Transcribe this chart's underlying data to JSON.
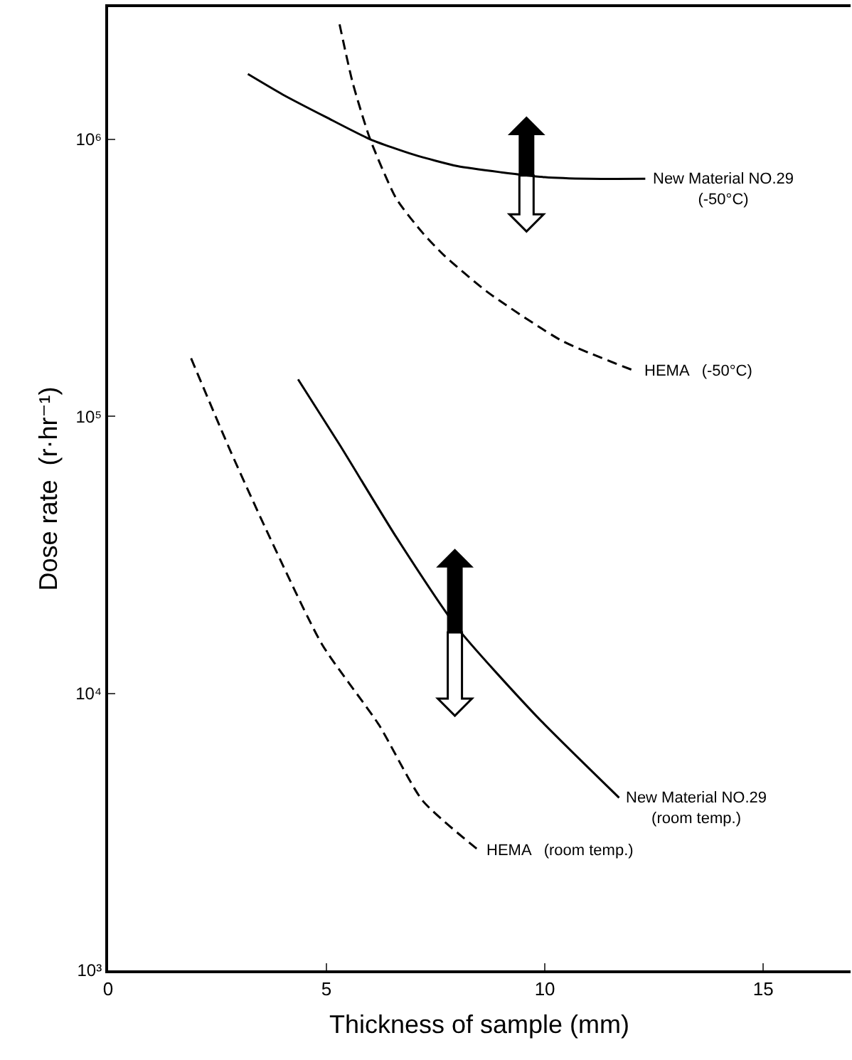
{
  "chart_data": {
    "type": "line",
    "xlabel": "Thickness of sample (mm)",
    "ylabel": "Dose rate  (r·hr⁻¹)",
    "log": "y",
    "grid": false,
    "marker": "none",
    "xlim": [
      0,
      17
    ],
    "xticks": [
      0,
      5,
      10,
      15
    ],
    "ylim": [
      1000,
      3000000
    ],
    "yticks": [
      {
        "value": 1000,
        "label": "10³"
      },
      {
        "value": 10000,
        "label": "10⁴"
      },
      {
        "value": 100000,
        "label": "10⁵"
      },
      {
        "value": 1000000,
        "label": "10⁶"
      }
    ],
    "series": [
      {
        "color": "#000000",
        "line_style": "solid",
        "x": [
          3.2,
          4,
          5,
          6,
          7,
          8,
          9,
          10,
          11,
          12.3
        ],
        "values": [
          1720000,
          1450000,
          1200000,
          1000000,
          880000,
          800000,
          760000,
          730000,
          720000,
          720000
        ]
      },
      {
        "color": "#000000",
        "line_style": "dashed",
        "x": [
          5.3,
          5.6,
          6,
          6.6,
          7.2,
          7.7,
          8.7,
          10.4,
          12.1
        ],
        "values": [
          2600000,
          1600000,
          1000000,
          610000,
          460000,
          380000,
          280000,
          187000,
          145000
        ]
      },
      {
        "color": "#000000",
        "line_style": "solid",
        "x": [
          4.35,
          5.3,
          6.6,
          8,
          9.8,
          11.7
        ],
        "values": [
          136000,
          79000,
          36600,
          17200,
          8300,
          4200
        ]
      },
      {
        "color": "#000000",
        "line_style": "dashed",
        "x": [
          1.9,
          2.8,
          3.7,
          4.9,
          6.2,
          7.2,
          8.5
        ],
        "values": [
          162000,
          75000,
          36600,
          15000,
          7700,
          4100,
          2700
        ]
      }
    ],
    "annotations": [
      {
        "text": "New Material NO.29\n(-50°C)",
        "x": 12.3,
        "y": 720000
      },
      {
        "text": "HEMA   (-50°C)",
        "x": 12.1,
        "y": 145000
      },
      {
        "text": "New Material NO.29\n(room temp.)",
        "x": 11.7,
        "y": 4200
      },
      {
        "text": "HEMA   (room temp.)",
        "x": 8.5,
        "y": 2700
      }
    ]
  }
}
